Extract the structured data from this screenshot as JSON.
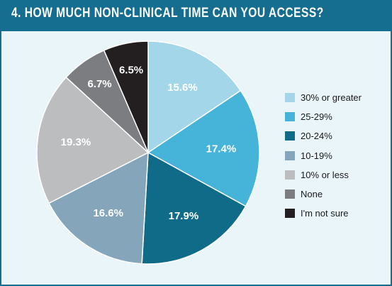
{
  "chart_data": {
    "type": "pie",
    "title": "4. HOW MUCH NON-CLINICAL TIME CAN YOU ACCESS?",
    "slices": [
      {
        "label": "30% or greater",
        "value": 15.6,
        "value_label": "15.6%",
        "color": "#a4d6e9"
      },
      {
        "label": "25-29%",
        "value": 17.4,
        "value_label": "17.4%",
        "color": "#45b4d8"
      },
      {
        "label": "20-24%",
        "value": 17.9,
        "value_label": "17.9%",
        "color": "#0f6b87"
      },
      {
        "label": "10-19%",
        "value": 16.6,
        "value_label": "16.6%",
        "color": "#85a5bb"
      },
      {
        "label": "10% or less",
        "value": 19.3,
        "value_label": "19.3%",
        "color": "#bcbdbf"
      },
      {
        "label": "None",
        "value": 6.7,
        "value_label": "6.7%",
        "color": "#7c7d80"
      },
      {
        "label": "I'm not sure",
        "value": 6.5,
        "value_label": "6.5%",
        "color": "#231f20"
      }
    ],
    "start_angle": "12 o'clock",
    "direction": "clockwise",
    "legend_position": "right"
  },
  "colors": {
    "title_bar": "#156e8f",
    "background": "#e9f5f9"
  }
}
